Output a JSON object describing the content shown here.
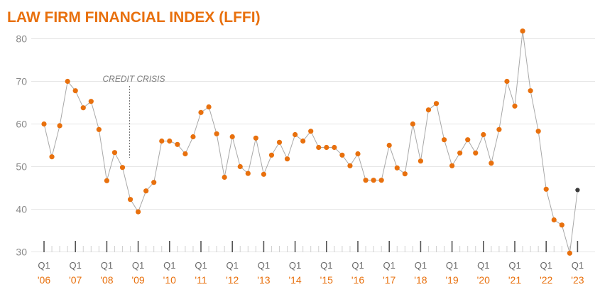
{
  "chart_data": {
    "type": "line",
    "title": "LAW FIRM FINANCIAL INDEX (LFFI)",
    "xlabel": "",
    "ylabel": "",
    "ylim": [
      30,
      83
    ],
    "yticks": [
      30,
      40,
      50,
      60,
      70,
      80
    ],
    "grid": true,
    "x_tick_quarter_label": "Q1",
    "x_tick_years": [
      "'06",
      "'07",
      "'08",
      "'09",
      "'10",
      "'11",
      "'12",
      "'13",
      "'14",
      "'15",
      "'16",
      "'17",
      "'18",
      "'19",
      "'20",
      "'21",
      "'22",
      "'23"
    ],
    "annotation": {
      "text": "CREDIT CRISIS",
      "quarter_index": 10
    },
    "series": [
      {
        "values": [
          60,
          52.3,
          59.6,
          70,
          67.8,
          63.8,
          65.3,
          58.7,
          46.7,
          53.3,
          49.8,
          42.3,
          39.4,
          44.3,
          46.3,
          56,
          56,
          55.2,
          53,
          57,
          62.7,
          64,
          57.7,
          47.5,
          57,
          50,
          48.4,
          56.7,
          48.2,
          52.7,
          55.7,
          51.8,
          57.5,
          56,
          58.3,
          54.5,
          54.5,
          54.5,
          52.7,
          50.2,
          53,
          46.8,
          46.8,
          46.8,
          55,
          49.7,
          48.3,
          60,
          51.3,
          63.3,
          64.8,
          56.3,
          50.2,
          53.2,
          56.3,
          53.2,
          57.5,
          50.8,
          58.7,
          70,
          64.2,
          81.8,
          67.8,
          58.3,
          44.7,
          37.5,
          36.3,
          29.7,
          44.5
        ],
        "last_point_color": "#3a3a3a"
      }
    ]
  },
  "colors": {
    "accent": "#e8700d",
    "line": "#a8a8a8",
    "last_point": "#3a3a3a"
  }
}
